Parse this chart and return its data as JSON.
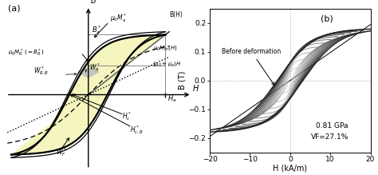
{
  "fig_width": 4.74,
  "fig_height": 2.19,
  "dpi": 100,
  "panel_a": {
    "label": "(a)",
    "xlim": [
      -1.7,
      2.1
    ],
    "ylim": [
      -1.6,
      1.9
    ],
    "Ha": 1.55,
    "Ba": 1.25,
    "MR": 0.6,
    "Hc": 0.4,
    "HcB": 0.58
  },
  "panel_b": {
    "label": "(b)",
    "xlabel": "H (kA/m)",
    "ylabel": "B (T)",
    "xlim": [
      -20,
      20
    ],
    "ylim": [
      -0.25,
      0.25
    ],
    "xticks": [
      -20,
      -10,
      0,
      10,
      20
    ],
    "ytick_labels": [
      "-0.2",
      "-0.1",
      "0",
      "0.1",
      "0.2"
    ],
    "yticks": [
      -0.2,
      -0.1,
      0,
      0.1,
      0.2
    ],
    "annotation_text": "Before deformation",
    "pressure_text": "0.81 GPa",
    "vf_text": "VF=27.1%",
    "n_loops": 12,
    "B_sat": 0.195
  }
}
